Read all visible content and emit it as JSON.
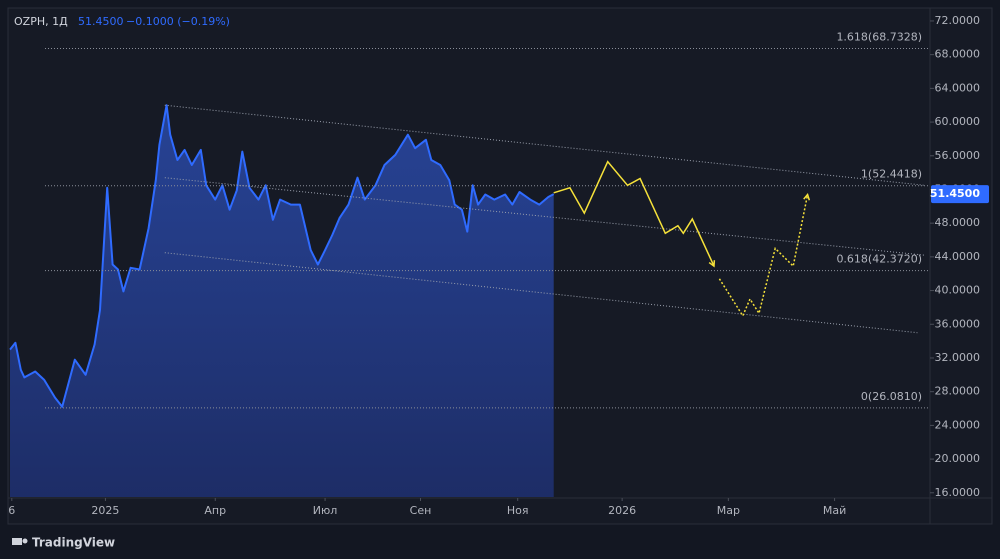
{
  "chart_data": {
    "type": "area",
    "symbol": "OZPH, 1Д",
    "price_text": "51.4500",
    "change_text": "−0.1000 (−0.19%)",
    "brand": "TradingView",
    "color": "#2f6bff",
    "grid": false,
    "xlim": [
      0,
      511
    ],
    "ylim": [
      15.5,
      73.3
    ],
    "xticks": [
      {
        "value": 1,
        "label": "6"
      },
      {
        "value": 53,
        "label": "2025"
      },
      {
        "value": 114,
        "label": "Апр"
      },
      {
        "value": 175,
        "label": "Июл"
      },
      {
        "value": 228,
        "label": "Сен"
      },
      {
        "value": 282,
        "label": "Ноя"
      },
      {
        "value": 340,
        "label": "2026"
      },
      {
        "value": 399,
        "label": "Мар"
      },
      {
        "value": 458,
        "label": "Май"
      }
    ],
    "yticks": [
      {
        "value": 16,
        "label": "16.0000"
      },
      {
        "value": 20,
        "label": "20.0000"
      },
      {
        "value": 24,
        "label": "24.0000"
      },
      {
        "value": 28,
        "label": "28.0000"
      },
      {
        "value": 32,
        "label": "32.0000"
      },
      {
        "value": 36,
        "label": "36.0000"
      },
      {
        "value": 40,
        "label": "40.0000"
      },
      {
        "value": 44,
        "label": "44.0000"
      },
      {
        "value": 48,
        "label": "48.0000"
      },
      {
        "value": 52,
        "label": "52.0000"
      },
      {
        "value": 56,
        "label": "56.0000"
      },
      {
        "value": 60,
        "label": "60.0000"
      },
      {
        "value": 64,
        "label": "64.0000"
      },
      {
        "value": 68,
        "label": "68.0000"
      },
      {
        "value": 72,
        "label": "72.0000"
      }
    ],
    "last_price": {
      "value": 51.45,
      "label": "51.4500"
    },
    "x": [
      0,
      3,
      6,
      8,
      14,
      19,
      25,
      29,
      33,
      36,
      42,
      47,
      50,
      54,
      57,
      60,
      63,
      67,
      72,
      77,
      81,
      83,
      87,
      89,
      93,
      97,
      101,
      106,
      109,
      114,
      118,
      122,
      126,
      129,
      133,
      138,
      142,
      146,
      150,
      156,
      161,
      167,
      171,
      175,
      179,
      183,
      188,
      193,
      197,
      203,
      208,
      214,
      221,
      225,
      231,
      234,
      239,
      244,
      247,
      251,
      254,
      257,
      260,
      264,
      269,
      275,
      279,
      283,
      289,
      294,
      299,
      302
    ],
    "values": [
      33.0,
      33.8,
      30.6,
      29.7,
      30.4,
      29.4,
      27.3,
      26.2,
      29.4,
      31.8,
      30.0,
      33.6,
      37.7,
      52.2,
      43.1,
      42.5,
      39.9,
      42.7,
      42.5,
      47.4,
      53.1,
      57.3,
      62.0,
      58.5,
      55.5,
      56.7,
      54.9,
      56.7,
      52.5,
      50.8,
      52.5,
      49.6,
      51.9,
      56.5,
      52.2,
      50.8,
      52.5,
      48.4,
      50.8,
      50.2,
      50.2,
      44.8,
      43.1,
      44.8,
      46.6,
      48.6,
      50.2,
      53.4,
      50.8,
      52.5,
      54.9,
      56.1,
      58.5,
      56.9,
      57.9,
      55.5,
      54.9,
      53.1,
      50.2,
      49.6,
      47.0,
      52.5,
      50.2,
      51.4,
      50.8,
      51.4,
      50.2,
      51.7,
      50.8,
      50.2,
      51.1,
      51.45
    ],
    "fib_levels": [
      {
        "value": 68.7328,
        "label": "1.618(68.7328)"
      },
      {
        "value": 52.4418,
        "label": "1(52.4418)"
      },
      {
        "value": 42.372,
        "label": "0.618(42.3720)"
      },
      {
        "value": 26.081,
        "label": "0(26.0810)"
      }
    ],
    "trendlines": [
      {
        "x": [
          86,
          508
        ],
        "values": [
          62.0,
          52.5
        ]
      },
      {
        "x": [
          86,
          508
        ],
        "values": [
          53.4,
          44.2
        ]
      },
      {
        "x": [
          86,
          504
        ],
        "values": [
          44.5,
          35.0
        ]
      }
    ],
    "forecast_color": "#f5e13a",
    "forecast": [
      {
        "style": "solid",
        "x": [
          302,
          311,
          319,
          332,
          343,
          350,
          364,
          371,
          374,
          379,
          391
        ],
        "values": [
          51.6,
          52.2,
          49.2,
          55.3,
          52.5,
          53.3,
          46.8,
          47.7,
          46.8,
          48.5,
          42.9
        ]
      },
      {
        "style": "dotted",
        "x": [
          394,
          407,
          411,
          416,
          425,
          435,
          443
        ],
        "values": [
          41.4,
          37.0,
          39.0,
          37.3,
          45.0,
          42.9,
          51.4
        ]
      }
    ]
  }
}
